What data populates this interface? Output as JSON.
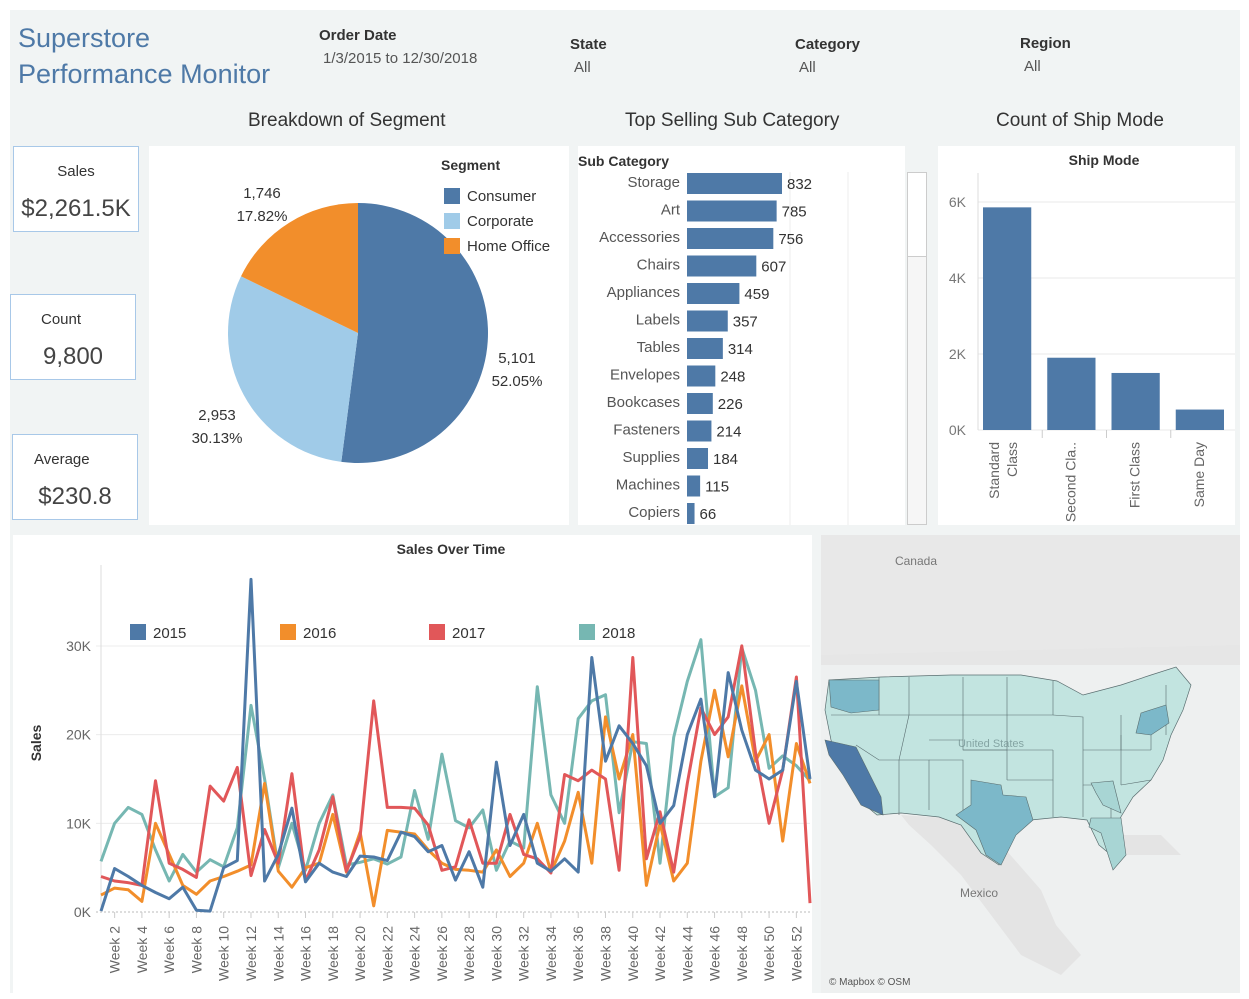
{
  "header": {
    "title_line1": "Superstore",
    "title_line2": "Performance Monitor",
    "filters": [
      {
        "label": "Order Date",
        "value": "1/3/2015 to 12/30/2018"
      },
      {
        "label": "State",
        "value": "All"
      },
      {
        "label": "Category",
        "value": "All"
      },
      {
        "label": "Region",
        "value": "All"
      }
    ]
  },
  "kpis": [
    {
      "label": "Sales",
      "value": "$2,261.5K"
    },
    {
      "label": "Count",
      "value": "9,800"
    },
    {
      "label": "Average",
      "value": "$230.8"
    }
  ],
  "sections": {
    "segment_title": "Breakdown of Segment",
    "subcat_title": "Top Selling Sub Category",
    "shipmode_title": "Count of Ship Mode"
  },
  "map": {
    "labels": {
      "canada": "Canada",
      "us": "United States",
      "mexico": "Mexico"
    },
    "attribution": "© Mapbox © OSM"
  },
  "colors": {
    "consumer": "#4e79a7",
    "corporate": "#a0cbe8",
    "home_office": "#f28e2b",
    "y2015": "#4e79a7",
    "y2016": "#f28e2b",
    "y2017": "#e15759",
    "y2018": "#76b7b2",
    "bar": "#4e79a7",
    "map_light": "#c2e4e0",
    "map_mid": "#7cb8c9",
    "map_dark": "#4e79a7"
  },
  "chart_data": [
    {
      "type": "pie",
      "legend_title": "Segment",
      "legend_position": "top-right",
      "slices": [
        {
          "name": "Consumer",
          "value": 5101,
          "label": "5,101",
          "pct": "52.05%"
        },
        {
          "name": "Corporate",
          "value": 2953,
          "label": "2,953",
          "pct": "30.13%"
        },
        {
          "name": "Home Office",
          "value": 1746,
          "label": "1,746",
          "pct": "17.82%"
        }
      ]
    },
    {
      "type": "bar",
      "orientation": "horizontal",
      "header": "Sub Category",
      "categories": [
        "Storage",
        "Art",
        "Accessories",
        "Chairs",
        "Appliances",
        "Labels",
        "Tables",
        "Envelopes",
        "Bookcases",
        "Fasteners",
        "Supplies",
        "Machines",
        "Copiers"
      ],
      "values": [
        832,
        785,
        756,
        607,
        459,
        357,
        314,
        248,
        226,
        214,
        184,
        115,
        66
      ],
      "xlim": [
        0,
        860
      ]
    },
    {
      "type": "bar",
      "title": "Ship Mode",
      "categories": [
        "Standard Class",
        "Second Cla..",
        "First Class",
        "Same Day"
      ],
      "cat_lines": [
        [
          "Standard",
          "Class"
        ],
        [
          "Second Cla.."
        ],
        [
          "First Class"
        ],
        [
          "Same Day"
        ]
      ],
      "values": [
        5859,
        1902,
        1501,
        538
      ],
      "ylim": [
        0,
        6500
      ],
      "yticks": [
        0,
        2000,
        4000,
        6000
      ],
      "ytick_labels": [
        "0K",
        "2K",
        "4K",
        "6K"
      ]
    },
    {
      "type": "line",
      "title": "Sales Over Time",
      "ylabel": "Sales",
      "ylim": [
        0,
        38000
      ],
      "yticks": [
        0,
        10000,
        20000,
        30000
      ],
      "ytick_labels": [
        "0K",
        "10K",
        "20K",
        "30K"
      ],
      "x": [
        1,
        2,
        3,
        4,
        5,
        6,
        7,
        8,
        9,
        10,
        11,
        12,
        13,
        14,
        15,
        16,
        17,
        18,
        19,
        20,
        21,
        22,
        23,
        24,
        25,
        26,
        27,
        28,
        29,
        30,
        31,
        32,
        33,
        34,
        35,
        36,
        37,
        38,
        39,
        40,
        41,
        42,
        43,
        44,
        45,
        46,
        47,
        48,
        49,
        50,
        51,
        52,
        53
      ],
      "xtick_labels": [
        "Week 2",
        "Week 4",
        "Week 6",
        "Week 8",
        "Week 10",
        "Week 12",
        "Week 14",
        "Week 16",
        "Week 18",
        "Week 20",
        "Week 22",
        "Week 24",
        "Week 26",
        "Week 28",
        "Week 30",
        "Week 32",
        "Week 34",
        "Week 36",
        "Week 38",
        "Week 40",
        "Week 42",
        "Week 44",
        "Week 46",
        "Week 48",
        "Week 50",
        "Week 52"
      ],
      "xtick_values": [
        2,
        4,
        6,
        8,
        10,
        12,
        14,
        16,
        18,
        20,
        22,
        24,
        26,
        28,
        30,
        32,
        34,
        36,
        38,
        40,
        42,
        44,
        46,
        48,
        50,
        52
      ],
      "legend_position": "top",
      "series": [
        {
          "name": "2015",
          "values": [
            100,
            4900,
            4000,
            3000,
            2200,
            1500,
            2800,
            200,
            100,
            5000,
            5800,
            37500,
            3500,
            6500,
            11700,
            3400,
            5500,
            4500,
            4000,
            6300,
            6200,
            5800,
            9000,
            8500,
            6800,
            7500,
            3600,
            6800,
            2800,
            16900,
            7500,
            11000,
            5500,
            4600,
            6000,
            4500,
            28700,
            17000,
            21000,
            19000,
            16500,
            10000,
            12000,
            20000,
            24000,
            13000,
            27000,
            20500,
            16000,
            15000,
            16000,
            26000,
            15000
          ]
        },
        {
          "name": "2016",
          "values": [
            1900,
            2700,
            2500,
            1200,
            10000,
            6500,
            3000,
            2000,
            3500,
            4000,
            4600,
            5300,
            14500,
            4600,
            2800,
            5000,
            5500,
            11000,
            4500,
            9000,
            700,
            9200,
            9000,
            8800,
            7000,
            5500,
            4800,
            4700,
            4500,
            7000,
            4000,
            5500,
            10000,
            4500,
            8000,
            13500,
            5500,
            22000,
            15000,
            20000,
            3000,
            10000,
            3500,
            5500,
            17000,
            25000,
            17500,
            25500,
            17000,
            20000,
            8000,
            19000,
            14500
          ]
        },
        {
          "name": "2017",
          "values": [
            4000,
            3500,
            3300,
            3000,
            14800,
            5500,
            4800,
            3900,
            14200,
            12500,
            16300,
            4100,
            9300,
            5500,
            15600,
            3500,
            7000,
            13000,
            4600,
            8500,
            23800,
            11800,
            11800,
            11700,
            9800,
            4700,
            5100,
            10400,
            5500,
            5500,
            11000,
            6500,
            6000,
            4400,
            15500,
            14800,
            16000,
            15000,
            4700,
            28700,
            6000,
            11300,
            4500,
            14500,
            23000,
            20000,
            22000,
            30000,
            18000,
            10000,
            16000,
            26500,
            1000
          ]
        },
        {
          "name": "2018",
          "values": [
            5700,
            10000,
            11800,
            11000,
            7000,
            3500,
            6500,
            4500,
            5900,
            5100,
            9500,
            23300,
            15000,
            5000,
            10000,
            4700,
            10000,
            13200,
            5300,
            5600,
            6000,
            5400,
            6200,
            13700,
            8200,
            17800,
            10300,
            9500,
            11500,
            4700,
            8000,
            7200,
            25400,
            13200,
            10000,
            21800,
            23800,
            24500,
            11200,
            19200,
            19000,
            5500,
            19700,
            26000,
            30700,
            13000,
            14000,
            29800,
            25000,
            16200,
            17600,
            16500,
            14800
          ]
        }
      ]
    }
  ]
}
